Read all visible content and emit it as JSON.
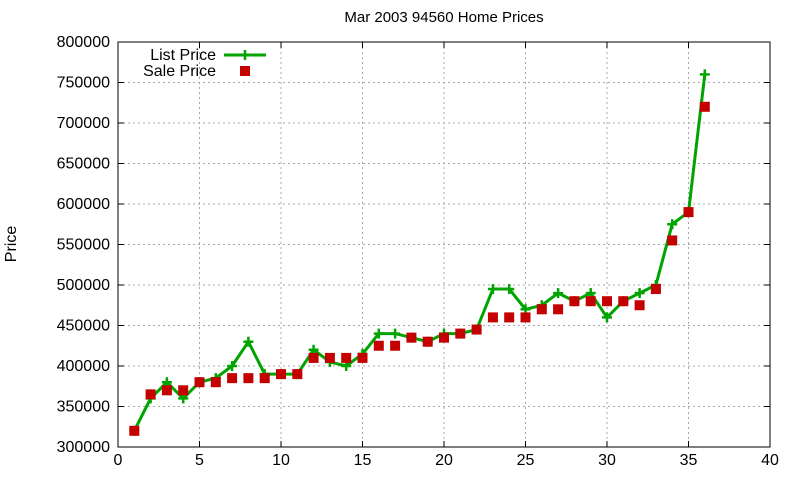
{
  "title": "Mar 2003 94560 Home Prices",
  "chart_data": {
    "type": "line",
    "title": "Mar 2003 94560 Home Prices",
    "xlabel": "",
    "ylabel": "Price",
    "xlim": [
      0,
      40
    ],
    "ylim": [
      300000,
      800000
    ],
    "x_ticks": [
      0,
      5,
      10,
      15,
      20,
      25,
      30,
      35,
      40
    ],
    "y_ticks": [
      300000,
      350000,
      400000,
      450000,
      500000,
      550000,
      600000,
      650000,
      700000,
      750000,
      800000
    ],
    "grid": true,
    "legend_position": "top-left-inside",
    "x": [
      1,
      2,
      3,
      4,
      5,
      6,
      7,
      8,
      9,
      10,
      11,
      12,
      13,
      14,
      15,
      16,
      17,
      18,
      19,
      20,
      21,
      22,
      23,
      24,
      25,
      26,
      27,
      28,
      29,
      30,
      31,
      32,
      33,
      34,
      35,
      36
    ],
    "series": [
      {
        "name": "List Price",
        "style": "line-plus",
        "color": "#00a400",
        "values": [
          320000,
          360000,
          380000,
          360000,
          380000,
          385000,
          400000,
          430000,
          390000,
          390000,
          390000,
          420000,
          405000,
          400000,
          415000,
          440000,
          440000,
          435000,
          430000,
          440000,
          440000,
          445000,
          495000,
          495000,
          470000,
          475000,
          490000,
          480000,
          490000,
          460000,
          480000,
          490000,
          500000,
          575000,
          590000,
          760000
        ]
      },
      {
        "name": "Sale Price",
        "style": "filled-square",
        "color": "#c40000",
        "values": [
          320000,
          365000,
          370000,
          370000,
          380000,
          380000,
          385000,
          385000,
          385000,
          390000,
          390000,
          410000,
          410000,
          410000,
          410000,
          425000,
          425000,
          435000,
          430000,
          435000,
          440000,
          445000,
          460000,
          460000,
          460000,
          470000,
          470000,
          480000,
          480000,
          480000,
          480000,
          475000,
          495000,
          555000,
          590000,
          720000
        ]
      }
    ],
    "colors": {
      "list_price": "#00a400",
      "sale_price": "#c40000",
      "grid": "#a8a8a8",
      "axis": "#000000",
      "background": "#ffffff"
    }
  }
}
